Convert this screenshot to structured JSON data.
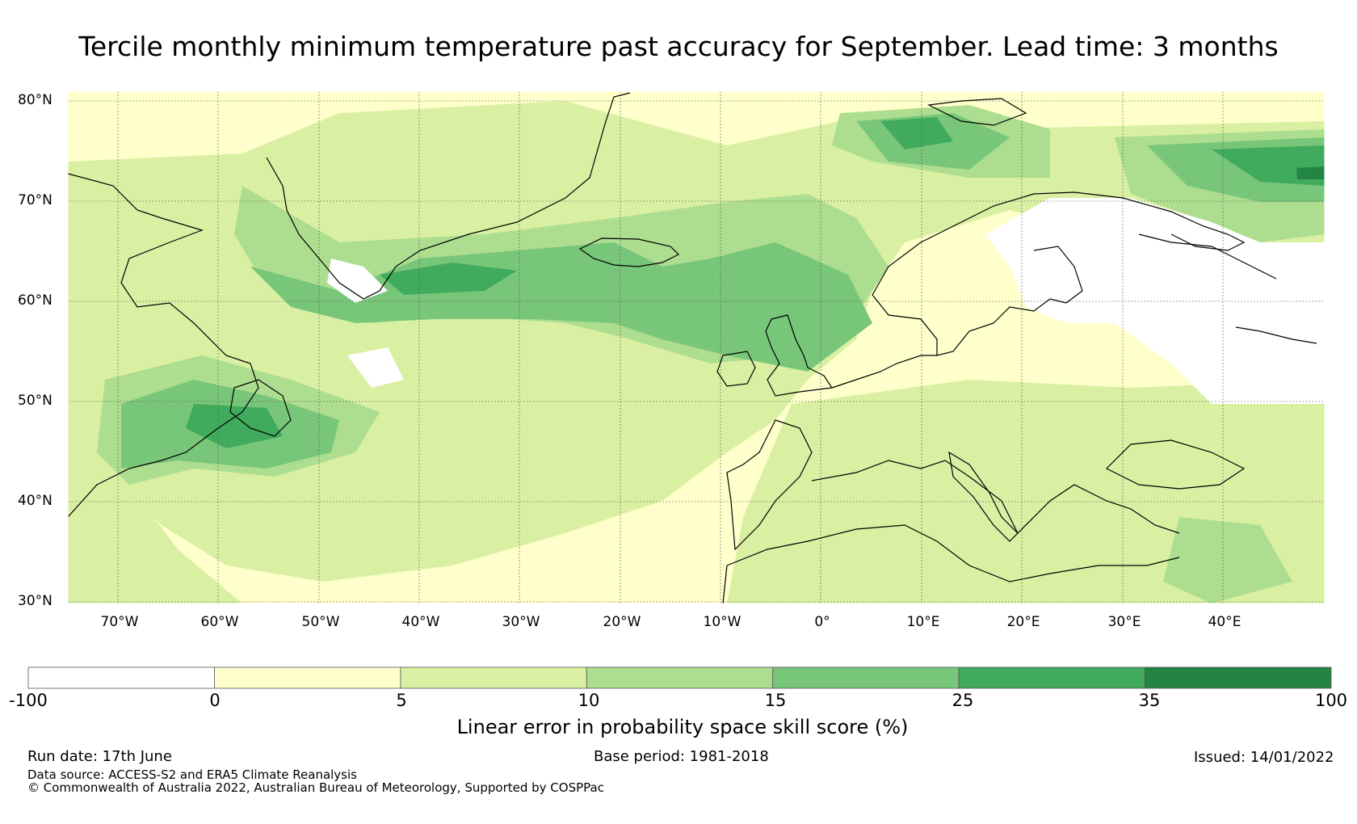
{
  "title": "Tercile monthly minimum temperature past accuracy for September. Lead time: 3 months",
  "map": {
    "lat_labels": [
      "80°N",
      "70°N",
      "60°N",
      "50°N",
      "40°N",
      "30°N"
    ],
    "lon_labels": [
      "70°W",
      "60°W",
      "50°W",
      "40°W",
      "30°W",
      "20°W",
      "10°W",
      "0°",
      "10°E",
      "20°E",
      "30°E",
      "40°E"
    ],
    "extent": {
      "lon_min": -75,
      "lon_max": 50,
      "lat_min": 30,
      "lat_max": 81
    },
    "gridlines": true,
    "fill_colors": {
      "below_0": "#ffffff",
      "0_5": "#ffffcc",
      "5_10": "#d9f0a3",
      "10_15": "#addd8e",
      "15_25": "#78c679",
      "25_35": "#41ab5d",
      "35_100": "#238443"
    }
  },
  "colorbar": {
    "ticks": [
      "-100",
      "0",
      "5",
      "10",
      "15",
      "25",
      "35",
      "100"
    ],
    "colors": [
      "#ffffff",
      "#ffffcc",
      "#d9f0a3",
      "#addd8e",
      "#78c679",
      "#41ab5d",
      "#238443"
    ],
    "label": "Linear error in probability space skill score (%)"
  },
  "footer": {
    "run_date": "Run date: 17th June",
    "base_period": "Base period: 1981-2018",
    "issued": "Issued: 14/01/2022",
    "data_source": "Data source: ACCESS-S2 and ERA5 Climate Reanalysis",
    "copyright": "© Commonwealth of Australia 2022, Australian Bureau of Meteorology, Supported by COSPPac"
  }
}
